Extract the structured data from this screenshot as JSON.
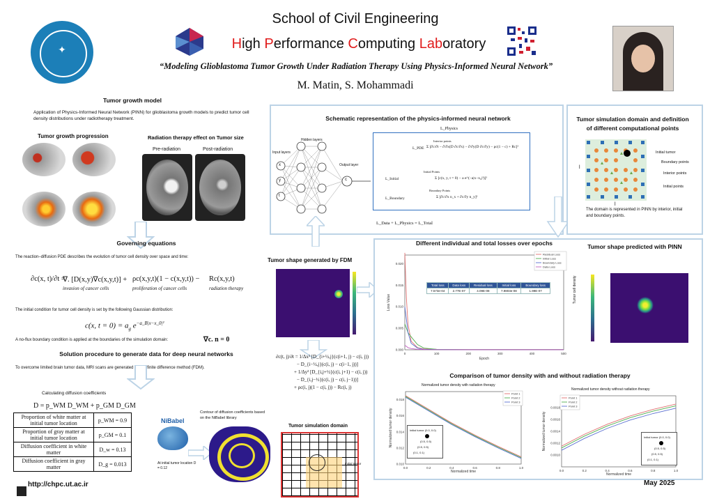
{
  "header": {
    "school": "School of Civil Engineering",
    "lab_parts": [
      "H",
      "igh ",
      "P",
      "erformance ",
      "C",
      "omputing ",
      "Lab",
      "oratory"
    ],
    "title": "“Modeling Glioblastoma Tumor Growth Under Radiation Therapy Using Physics-Informed Neural Network”",
    "authors": "M. Matin, S. Mohammadi"
  },
  "colors": {
    "lab_accent": "#e01b1b",
    "panel_border": "#bcd3e6",
    "arrow": "#cfe0ef",
    "heat_bg": "#3b0f70",
    "heat_spot": "#7fe040"
  },
  "left": {
    "growth_model_title": "Tumor growth model",
    "intro": "Application of Physics-Informed Neural Network (PINN) for glioblastoma growth models to predict tumor cell density distributions under radiotherapy treatment.",
    "progression_title": "Tumor growth progression",
    "radiation_title": "Radiation therapy effect on Tumor size",
    "pre_label": "Pre-radiation",
    "post_label": "Post-radiation",
    "governing_title": "Governing equations",
    "rd_text": "The reaction–diffusion PDE describes the evolution of tumor cell density over space and time:",
    "eq_lhs": "∂c(x, t)/∂t =",
    "eq_term1": "∇. [D(x,y)∇c(x,y,t)] +",
    "eq_term1_label": "invasion of cancer cells",
    "eq_term2": "ρc(x,y,t)(1 − c(x,y,t)) −",
    "eq_term2_label": "proliferation of cancer cells",
    "eq_term3": "Rc(x,y,t)",
    "eq_term3_label": "radiation therapy",
    "initial_text": "The initial condition for tumor cell density is set by the following Gaussian distribution:",
    "initial_eq": "c(x, t = 0) = a",
    "initial_eq_sub": "g",
    "initial_eq_exp": "−a_B|x−x_0|²",
    "noflux_text": "A no-flux boundary condition is applied at the boundaries of the simulation domain:",
    "noflux_eq": "∇c. n = 0",
    "solution_title": "Solution procedure to generate data for deep neural networks",
    "solution_text": "To overcome limited brain tumor data, MRI scans are generated by the finite difference method (FDM).",
    "diffusion_title": "Calculating diffusion coefficients",
    "diffusion_eq": "D = p_WM D_WM + p_GM D_GM",
    "table": [
      [
        "Proportion of white matter at initial tumor location",
        "p_WM = 0.9"
      ],
      [
        "Proportion of gray matter at initial tumor location",
        "p_GM = 0.1"
      ],
      [
        "Diffusion coefficient in white matter",
        "D_w = 0.13"
      ],
      [
        "Diffusion coefficient in gray matter",
        "D_g = 0.013"
      ]
    ],
    "nibabel": "NiBabel",
    "at_initial": "At initial tumor location D = 0.12",
    "contour_label": "Contour of diffusion coefficients based on the NiBabel library",
    "url": "http://chpc.ut.ac.ir"
  },
  "middle": {
    "fdm_title": "Tumor shape generated by FDM",
    "fd_eq_lines": [
      "∂c(t, j)/∂t = 1/Δx² [D_{i+½,j}(c(i+1, j) − c(i, j))",
      "− D_{i−½,j}(c(i, j) − c(i−1, j))]",
      "+ 1/Δy² [D_{i,j+½}(c(i, j+1) − c(i, j))",
      "− D_{i,j−½}(c(i, j) − c(i, j−1))]",
      "+ ρc(i, j)(1 − c(i, j)) − Rc(i, j)"
    ],
    "domain_title": "Tumor simulation domain",
    "initial_tumor": "Initial tumor"
  },
  "pinn": {
    "title": "Schematic representation of the physics-informed neural network",
    "input_layers": "Input layers",
    "hidden_layers": "Hidden layers",
    "output_layer": "Output layer",
    "inputs": [
      "x",
      "y",
      "t"
    ],
    "output": "c",
    "l_physics": "L_Physics",
    "l_pde": "L_PDE",
    "l_initial": "L_Initial",
    "l_boundary": "L_Boundary",
    "interior_points": "Interior points",
    "initial_points": "Initial Points",
    "boundary_points": "Boundary Points",
    "total": "L_Data + L_Physics = L_Total"
  },
  "domain": {
    "title": "Tumor simulation domain and definition of different computational points",
    "legend": [
      "Initial tumor",
      "Boundary points",
      "Interior points",
      "Initial points"
    ],
    "note": "The domain is represented in PINN by interior, initial and boundary points.",
    "side_label": "l"
  },
  "losses": {
    "title": "Different individual and total losses over epochs",
    "legend": [
      "Residual Loss",
      "Initial Loss",
      "Boundary Loss",
      "Data Loss"
    ],
    "ylabel": "Loss Value",
    "xlabel": "Epoch",
    "yticks": [
      "0.000",
      "0.005",
      "0.010",
      "0.015",
      "0.020"
    ],
    "xticks": [
      "0",
      "100",
      "200",
      "300",
      "400",
      "500"
    ],
    "table_head": [
      "Total loss",
      "Data loss",
      "Residual loss",
      "Initial loss",
      "Boundary loss"
    ],
    "table_vals": [
      "7.573e-04",
      "2.77E-07",
      "4.09E-08",
      "7.9803e-08",
      "1.99E-07"
    ]
  },
  "pinn_pred": {
    "title": "Tumor shape predicted with PINN",
    "colorbar_label": "Tumor cell density"
  },
  "comparison": {
    "title": "Comparison of tumor density with and without radiation therapy",
    "left_title": "Normalized tumor density with radiation therapy",
    "right_title": "Normalized tumor density without radiation therapy",
    "xlabel": "Normalized time",
    "ylabel": "Normalized tumor density",
    "legend": [
      "Point 1",
      "Point 2",
      "Point 3"
    ],
    "inset_label": "Initial tumor (0.0, 0.0)",
    "inset_points": [
      "(0.5, 0.5)",
      "(0.5, 0.5)",
      "(0.1, 0.1)"
    ],
    "xticks": [
      "0.0",
      "0.2",
      "0.4",
      "0.6",
      "0.8",
      "1.0"
    ]
  },
  "footer": {
    "date": "May 2025"
  },
  "chart_data": [
    {
      "type": "line",
      "title": "Different individual and total losses over epochs",
      "xlabel": "Epoch",
      "ylabel": "Loss Value",
      "xlim": [
        0,
        500
      ],
      "ylim": [
        0,
        0.022
      ],
      "x": [
        0,
        5,
        10,
        20,
        40,
        60,
        100,
        200,
        300,
        400,
        500
      ],
      "series": [
        {
          "name": "Residual Loss",
          "color": "#e07070",
          "values": [
            0.0225,
            0.012,
            0.006,
            0.002,
            0.0005,
            0.0002,
            0.0001,
            5e-05,
            4e-05,
            4e-05,
            4e-05
          ]
        },
        {
          "name": "Initial Loss",
          "color": "#4fae4f",
          "values": [
            0.006,
            0.005,
            0.004,
            0.003,
            0.0012,
            0.0004,
            0.0001,
            5e-05,
            4e-05,
            4e-05,
            4e-05
          ]
        },
        {
          "name": "Boundary Loss",
          "color": "#5a6fd0",
          "values": [
            0.01,
            0.007,
            0.004,
            0.0015,
            0.0004,
            0.0001,
            5e-05,
            3e-05,
            3e-05,
            3e-05,
            3e-05
          ]
        },
        {
          "name": "Data Loss",
          "color": "#c060c0",
          "values": [
            0.001,
            0.0008,
            0.0005,
            0.0003,
            0.0001,
            5e-05,
            3e-05,
            2e-05,
            2e-05,
            2e-05,
            2e-05
          ]
        }
      ]
    },
    {
      "type": "line",
      "title": "Normalized tumor density with radiation therapy",
      "xlabel": "Normalized time",
      "ylabel": "Normalized tumor density",
      "xlim": [
        0,
        1
      ],
      "ylim": [
        0.01,
        0.019
      ],
      "x": [
        0,
        0.2,
        0.4,
        0.6,
        0.8,
        1.0
      ],
      "series": [
        {
          "name": "Point 1",
          "color": "#e07070",
          "values": [
            0.0185,
            0.0168,
            0.0151,
            0.0136,
            0.0122,
            0.0109
          ]
        },
        {
          "name": "Point 2",
          "color": "#4fae4f",
          "values": [
            0.0184,
            0.0167,
            0.015,
            0.0135,
            0.0121,
            0.0108
          ]
        },
        {
          "name": "Point 3",
          "color": "#5a6fd0",
          "values": [
            0.0183,
            0.0166,
            0.0149,
            0.0134,
            0.012,
            0.0107
          ]
        }
      ]
    },
    {
      "type": "line",
      "title": "Normalized tumor density without radiation therapy",
      "xlabel": "Normalized time",
      "ylabel": "Normalized tumor density",
      "xlim": [
        0,
        1
      ],
      "ylim": [
        0.0008,
        0.002
      ],
      "x": [
        0,
        0.2,
        0.4,
        0.6,
        0.8,
        1.0
      ],
      "series": [
        {
          "name": "Point 1",
          "color": "#e07070",
          "values": [
            0.00115,
            0.00135,
            0.00152,
            0.00166,
            0.00177,
            0.00186
          ]
        },
        {
          "name": "Point 2",
          "color": "#4fae4f",
          "values": [
            0.00112,
            0.00132,
            0.00149,
            0.00163,
            0.00174,
            0.00183
          ]
        },
        {
          "name": "Point 3",
          "color": "#5a6fd0",
          "values": [
            0.00108,
            0.00128,
            0.00145,
            0.00159,
            0.0017,
            0.00179
          ]
        }
      ]
    }
  ]
}
